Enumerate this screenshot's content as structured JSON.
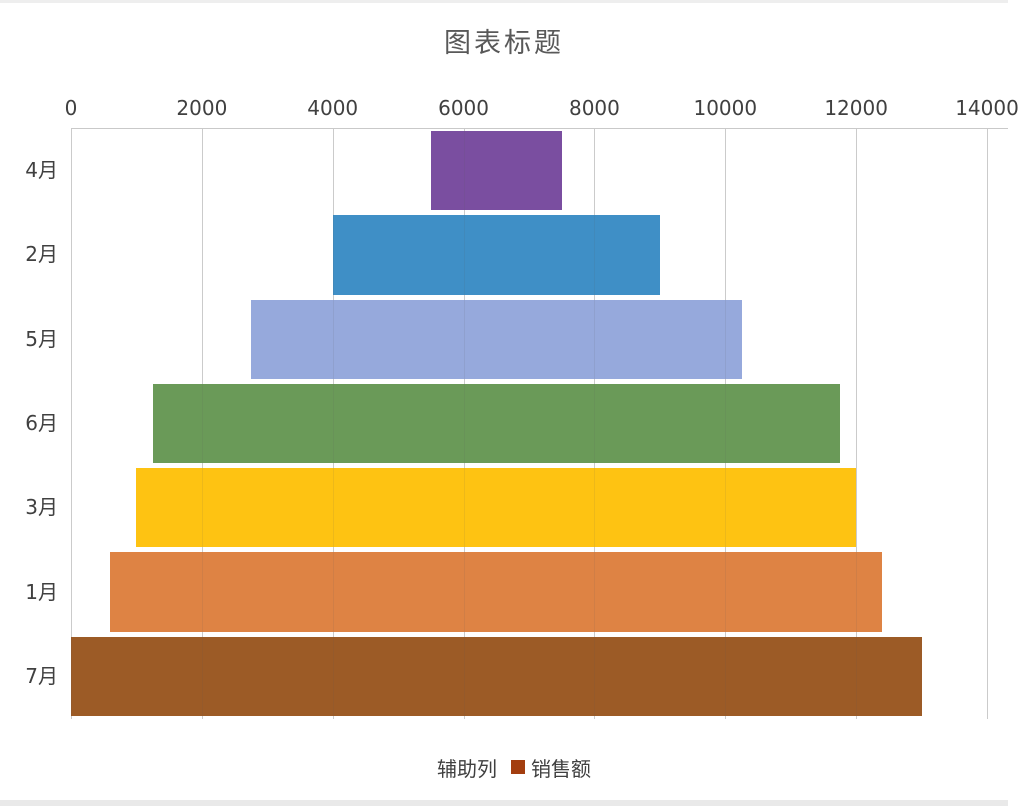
{
  "page": {
    "background": "#FFFFFF"
  },
  "chart_data": {
    "type": "bar",
    "orientation": "horizontal",
    "subtype": "stacked-funnel-pyramid",
    "title": "图表标题",
    "title_color": "#595959",
    "axis_text_color": "#404040",
    "categories": [
      "4月",
      "2月",
      "5月",
      "6月",
      "3月",
      "1月",
      "7月"
    ],
    "series": [
      {
        "name": "辅助列",
        "values": [
          5500,
          4000,
          2750,
          1250,
          1000,
          600,
          0
        ],
        "fill": "transparent",
        "legend_marker": "transparent"
      },
      {
        "name": "销售额",
        "values": [
          2000,
          5000,
          7500,
          10500,
          11000,
          11800,
          13000
        ],
        "legend_marker": "#A33E0F"
      }
    ],
    "point_colors": [
      "#7A4EA0",
      "#3F8FC6",
      "#96A9DC",
      "#6A9A58",
      "#FEC312",
      "#DE8344",
      "#9C5B26"
    ],
    "x_axis": {
      "position": "top",
      "min": 0,
      "max": 14000,
      "tick_interval": 2000,
      "ticks": [
        "0",
        "2000",
        "4000",
        "6000",
        "8000",
        "10000",
        "12000",
        "14000"
      ]
    },
    "gridlines": {
      "vertical": true,
      "color": "#D9D9D9"
    },
    "legend": {
      "position": "bottom",
      "entries": [
        "辅助列",
        "销售额"
      ]
    }
  }
}
